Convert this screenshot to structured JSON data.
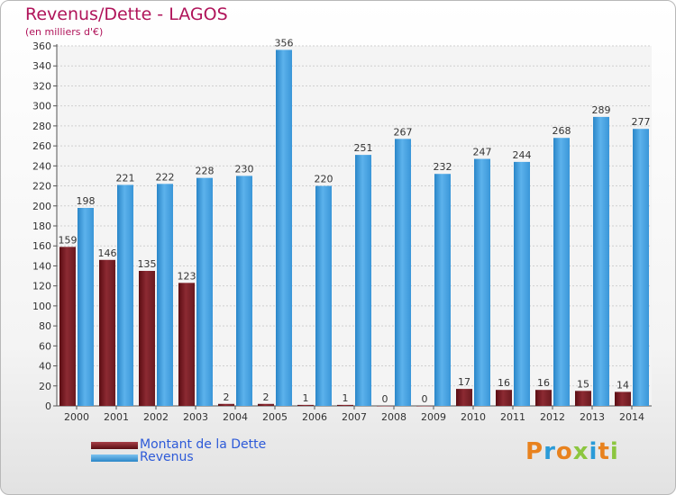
{
  "header": {
    "title": "Revenus/Dette - LAGOS",
    "subtitle": "(en milliers d'€)"
  },
  "colors": {
    "debt": "#7a1e24",
    "revenue": "#4aa3e4",
    "title": "#b0145a",
    "legend_text": "#2d5ad8"
  },
  "logo": {
    "text": "Proxiti",
    "letters": [
      {
        "ch": "P",
        "color": "#e8821e"
      },
      {
        "ch": "r",
        "color": "#2a9bd8"
      },
      {
        "ch": "o",
        "color": "#e8821e"
      },
      {
        "ch": "x",
        "color": "#8cc63f"
      },
      {
        "ch": "i",
        "color": "#2a9bd8"
      },
      {
        "ch": "t",
        "color": "#e8821e"
      },
      {
        "ch": "i",
        "color": "#8cc63f"
      }
    ]
  },
  "chart_data": {
    "type": "bar",
    "title": "Revenus/Dette - LAGOS",
    "subtitle": "(en milliers d'€)",
    "categories": [
      "2000",
      "2001",
      "2002",
      "2003",
      "2004",
      "2005",
      "2006",
      "2007",
      "2008",
      "2009",
      "2010",
      "2011",
      "2012",
      "2013",
      "2014"
    ],
    "series": [
      {
        "name": "Montant de la Dette",
        "color": "#7a1e24",
        "values": [
          159,
          146,
          135,
          123,
          2,
          2,
          1,
          1,
          0,
          0,
          17,
          16,
          16,
          15,
          14
        ]
      },
      {
        "name": "Revenus",
        "color": "#4aa3e4",
        "values": [
          198,
          221,
          222,
          228,
          230,
          356,
          220,
          251,
          267,
          232,
          247,
          244,
          268,
          289,
          277
        ]
      }
    ],
    "ylim": [
      0,
      360
    ],
    "yticks": [
      0,
      20,
      40,
      60,
      80,
      100,
      120,
      140,
      160,
      180,
      200,
      220,
      240,
      260,
      280,
      300,
      320,
      340,
      360
    ],
    "grid": true,
    "legend": "bottom-left"
  }
}
